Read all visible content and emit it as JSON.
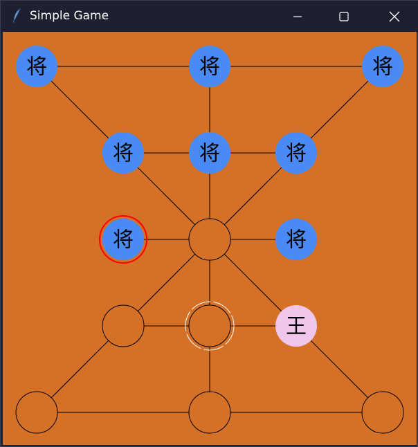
{
  "window": {
    "title": "Simple Game",
    "controls": [
      "minimize",
      "maximize",
      "close"
    ]
  },
  "board": {
    "background_color": "#d57127",
    "line_color": "#000000",
    "general_piece": {
      "label": "将",
      "color": "#4a8af4"
    },
    "king_piece": {
      "label": "王",
      "color": "#f0c6ec"
    },
    "selected_ring_color": "#ff0000",
    "hint_ring_color": "#ffffff",
    "points": [
      {
        "id": "p1",
        "occupant": "general",
        "selected": false,
        "hint": false
      },
      {
        "id": "p2",
        "occupant": "general",
        "selected": false,
        "hint": false
      },
      {
        "id": "p3",
        "occupant": "general",
        "selected": false,
        "hint": false
      },
      {
        "id": "p4",
        "occupant": "general",
        "selected": false,
        "hint": false
      },
      {
        "id": "p5",
        "occupant": "general",
        "selected": false,
        "hint": false
      },
      {
        "id": "p6",
        "occupant": "general",
        "selected": false,
        "hint": false
      },
      {
        "id": "p7",
        "occupant": "general",
        "selected": true,
        "hint": false
      },
      {
        "id": "p8",
        "occupant": "empty",
        "selected": false,
        "hint": false
      },
      {
        "id": "p9",
        "occupant": "general",
        "selected": false,
        "hint": false
      },
      {
        "id": "p10",
        "occupant": "empty",
        "selected": false,
        "hint": false
      },
      {
        "id": "p11",
        "occupant": "empty",
        "selected": false,
        "hint": true
      },
      {
        "id": "p12",
        "occupant": "king",
        "selected": false,
        "hint": false
      },
      {
        "id": "p13",
        "occupant": "empty",
        "selected": false,
        "hint": false
      },
      {
        "id": "p14",
        "occupant": "empty",
        "selected": false,
        "hint": false
      },
      {
        "id": "p15",
        "occupant": "empty",
        "selected": false,
        "hint": false
      }
    ],
    "edges": [
      [
        "p1",
        "p2"
      ],
      [
        "p2",
        "p3"
      ],
      [
        "p2",
        "p5"
      ],
      [
        "p1",
        "p4"
      ],
      [
        "p3",
        "p6"
      ],
      [
        "p4",
        "p5"
      ],
      [
        "p5",
        "p6"
      ],
      [
        "p5",
        "p8"
      ],
      [
        "p4",
        "p8"
      ],
      [
        "p6",
        "p8"
      ],
      [
        "p7",
        "p8"
      ],
      [
        "p8",
        "p9"
      ],
      [
        "p8",
        "p11"
      ],
      [
        "p8",
        "p10"
      ],
      [
        "p8",
        "p12"
      ],
      [
        "p10",
        "p11"
      ],
      [
        "p11",
        "p12"
      ],
      [
        "p11",
        "p14"
      ],
      [
        "p10",
        "p13"
      ],
      [
        "p12",
        "p15"
      ],
      [
        "p13",
        "p14"
      ],
      [
        "p14",
        "p15"
      ]
    ]
  }
}
